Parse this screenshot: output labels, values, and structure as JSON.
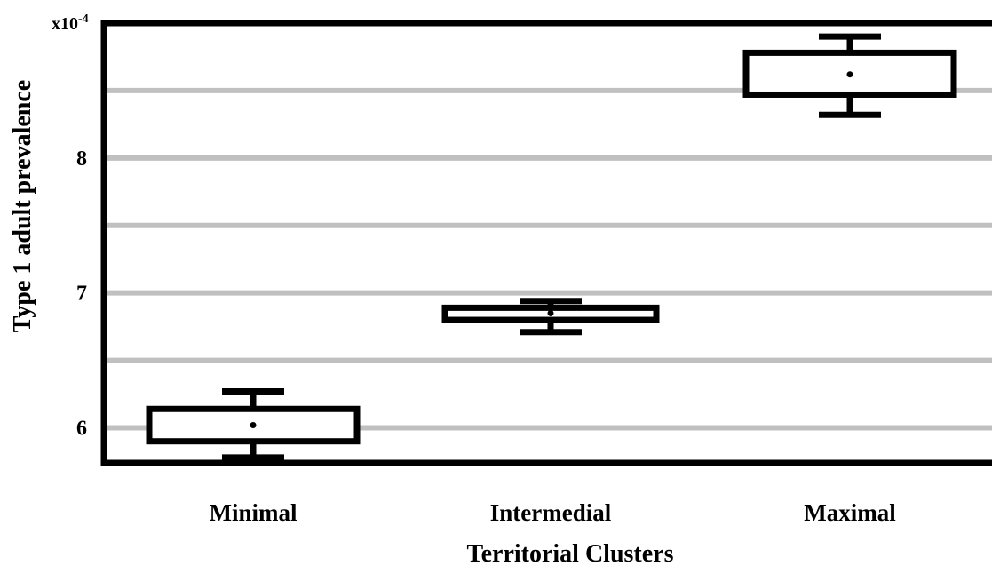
{
  "chart_data": {
    "type": "box",
    "xlabel": "Territorial Clusters",
    "ylabel": "Type 1 adult prevalence",
    "y_scale_label": "x10",
    "y_scale_exponent": "-4",
    "categories": [
      "Minimal",
      "Intermedial",
      "Maximal"
    ],
    "y_ticks": [
      6,
      7,
      8
    ],
    "y_tick_labels": [
      "6",
      "7",
      "8"
    ],
    "gridlines": [
      6,
      6.5,
      7,
      7.5,
      8,
      8.5
    ],
    "ylim": [
      5.74,
      9.0
    ],
    "grid": true,
    "boxes": [
      {
        "category": "Minimal",
        "whisker_low": 5.78,
        "q1": 5.9,
        "mean": 6.02,
        "q3": 6.14,
        "whisker_high": 6.27
      },
      {
        "category": "Intermedial",
        "whisker_low": 6.71,
        "q1": 6.8,
        "mean": 6.85,
        "q3": 6.89,
        "whisker_high": 6.94
      },
      {
        "category": "Maximal",
        "whisker_low": 8.32,
        "q1": 8.47,
        "mean": 8.62,
        "q3": 8.78,
        "whisker_high": 8.9
      }
    ],
    "colors": {
      "grid": "#c0c0c0",
      "box": "#000000",
      "fill": "#ffffff"
    }
  }
}
